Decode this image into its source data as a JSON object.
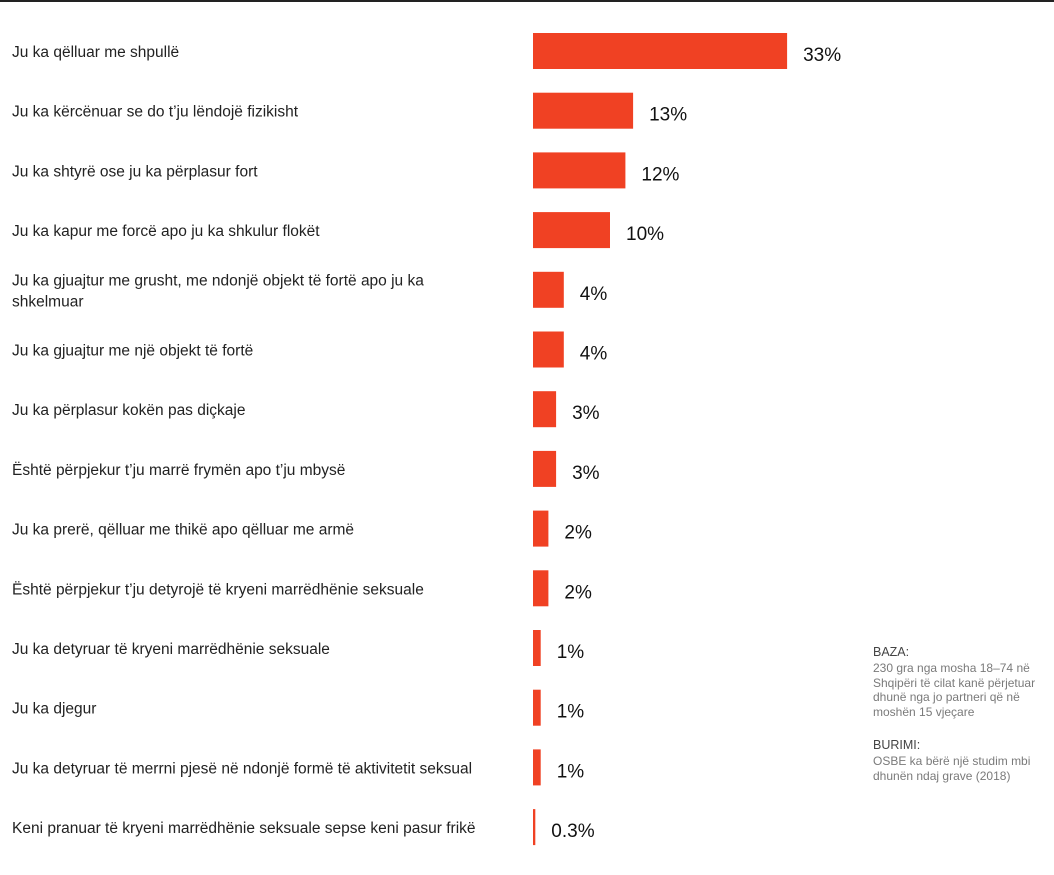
{
  "chart_data": {
    "type": "bar",
    "orientation": "horizontal",
    "unit": "%",
    "bar_color": "#f04123",
    "categories": [
      "Ju ka qëlluar me shpullë",
      "Ju ka kërcënuar se do t’ju lëndojë fizikisht",
      "Ju ka shtyrë ose ju ka përplasur fort",
      "Ju ka kapur me forcë apo ju ka shkulur flokët",
      "Ju ka gjuajtur me grusht, me ndonjë objekt të fortë apo ju ka shkelmuar",
      "Ju ka gjuajtur me një objekt të fortë",
      "Ju ka përplasur kokën pas diçkaje",
      "Është përpjekur t’ju marrë frymën apo t’ju mbysë",
      "Ju ka prerë, qëlluar me thikë apo qëlluar me armë",
      "Është përpjekur t’ju detyrojë të kryeni marrëdhënie seksuale",
      "Ju ka detyruar të kryeni marrëdhënie seksuale",
      "Ju ka djegur",
      "Ju ka detyruar të merrni pjesë në ndonjë formë të aktivitetit seksual",
      "Keni pranuar të kryeni marrëdhënie seksuale sepse keni pasur frikë"
    ],
    "values": [
      33,
      13,
      12,
      10,
      4,
      4,
      3,
      3,
      2,
      2,
      1,
      1,
      1,
      0.3
    ],
    "value_labels": [
      "33%",
      "13%",
      "12%",
      "10%",
      "4%",
      "4%",
      "3%",
      "3%",
      "2%",
      "2%",
      "1%",
      "1%",
      "1%",
      "0.3%"
    ],
    "title": "",
    "xlabel": "",
    "ylabel": ""
  },
  "notes": {
    "base_heading": "BAZA:",
    "base_text": "230 gra  nga mosha 18–74 në Shqipëri të cilat kanë përjetuar dhunë nga jo partneri që në moshën 15 vjeçare",
    "source_heading": "BURIMI:",
    "source_text": "OSBE ka bërë një studim mbi dhunën ndaj grave (2018)"
  }
}
